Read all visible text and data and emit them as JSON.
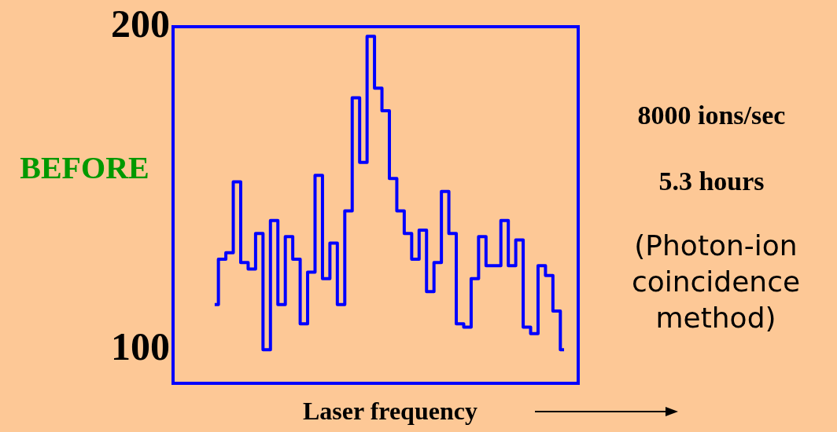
{
  "chart_data": {
    "type": "step",
    "xlabel": "Laser frequency",
    "categories": [
      null,
      null,
      null,
      null,
      null,
      null,
      null,
      null,
      null,
      null,
      null,
      null,
      null,
      null,
      null,
      null,
      null,
      null,
      null,
      null,
      null,
      null,
      null,
      null,
      null,
      null,
      null,
      null,
      null,
      null,
      null,
      null,
      null,
      null,
      null,
      null,
      null,
      null,
      null,
      null,
      null,
      null,
      null,
      null,
      null,
      null,
      null,
      null
    ],
    "series": [
      {
        "color": "#0000ff",
        "values": [
          114,
          128,
          130,
          152,
          127,
          125,
          136,
          100,
          140,
          114,
          135,
          128,
          108,
          124,
          154,
          122,
          133,
          114,
          143,
          178,
          158,
          197,
          181,
          174,
          153,
          143,
          136,
          128,
          137,
          118,
          127,
          149,
          136,
          108,
          107,
          122,
          135,
          126,
          126,
          140,
          126,
          134,
          107,
          105,
          126,
          123,
          112,
          100
        ]
      }
    ],
    "ylim": [
      89.6,
      200
    ],
    "yticks": [
      100,
      200
    ],
    "grid": false,
    "legend": false,
    "marker": "none",
    "line_style": "solid",
    "annotations": [
      "BEFORE",
      "8000 ions/sec",
      "5.3 hours",
      "(Photon-ion coincidence method)"
    ]
  }
}
